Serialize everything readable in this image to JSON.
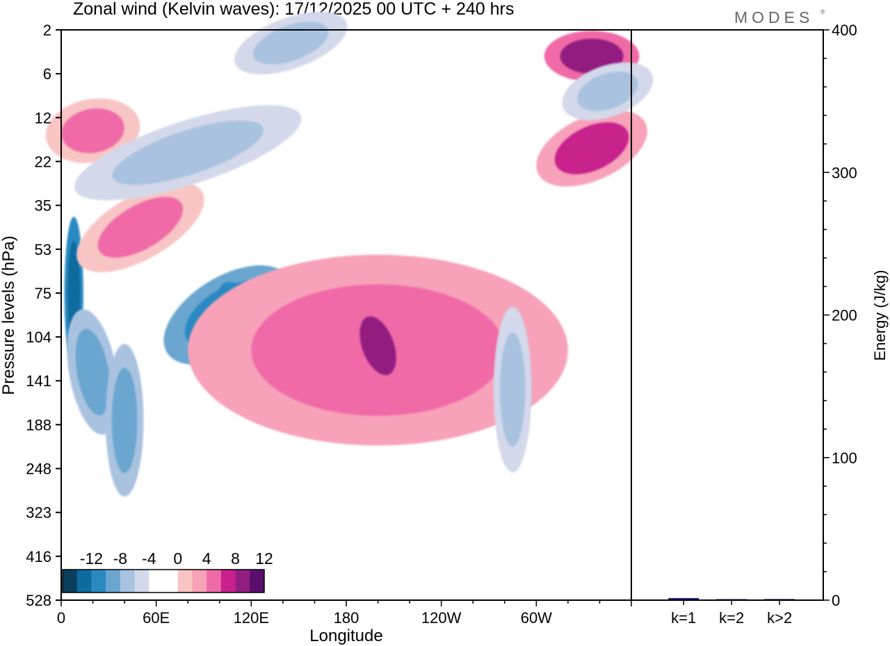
{
  "chart_data": {
    "type": "heatmap",
    "title": "Zonal wind (Kelvin waves):  17/12/2025  00 UTC  + 240 hrs",
    "brand": "MODES",
    "brand_mark": "®",
    "xlabel": "Longitude",
    "ylabel": "Pressure levels (hPa)",
    "x_ticks": [
      {
        "lon": 0,
        "label": "0"
      },
      {
        "lon": 60,
        "label": "60E"
      },
      {
        "lon": 120,
        "label": "120E"
      },
      {
        "lon": 180,
        "label": "180"
      },
      {
        "lon": 240,
        "label": "120W"
      },
      {
        "lon": 300,
        "label": "60W"
      }
    ],
    "xlim": [
      0,
      360
    ],
    "pressure_levels": [
      "2",
      "6",
      "12",
      "22",
      "35",
      "53",
      "75",
      "104",
      "141",
      "188",
      "248",
      "323",
      "416",
      "528"
    ],
    "colorbar": {
      "labels": [
        "-12",
        "-8",
        "-4",
        "0",
        "4",
        "8",
        "12"
      ],
      "colors": [
        "#0b3d5c",
        "#0d6c9d",
        "#2b89c2",
        "#6aa6d0",
        "#a9c2e0",
        "#d3d8ea",
        "#ffffff",
        "#ffffff",
        "#f8c5c4",
        "#f7a2b8",
        "#f06aa7",
        "#c8208c",
        "#921d80",
        "#5a0e6d"
      ]
    },
    "contours": [
      {
        "lon": 8,
        "level": 6,
        "rx": 4,
        "ry": 1.2,
        "rot": 0,
        "value": -12
      },
      {
        "lon": 20,
        "level": 7.8,
        "rx": 10,
        "ry": 1.0,
        "rot": -10,
        "value": -8
      },
      {
        "lon": 40,
        "level": 8.9,
        "rx": 8,
        "ry": 1.2,
        "rot": 0,
        "value": -8
      },
      {
        "lon": 105,
        "level": 6.5,
        "rx": 30,
        "ry": 0.6,
        "rot": -32,
        "value": -10
      },
      {
        "lon": 113,
        "level": 6.4,
        "rx": 7,
        "ry": 0.5,
        "rot": -30,
        "value": -12
      },
      {
        "lon": 200,
        "level": 7.3,
        "rx": 80,
        "ry": 1.5,
        "rot": 0,
        "value": 7
      },
      {
        "lon": 200,
        "level": 7.2,
        "rx": 10,
        "ry": 0.7,
        "rot": -20,
        "value": 10
      },
      {
        "lon": 285,
        "level": 8.2,
        "rx": 8,
        "ry": 1.3,
        "rot": 0,
        "value": -6
      },
      {
        "lon": 50,
        "level": 4.5,
        "rx": 30,
        "ry": 0.5,
        "rot": -30,
        "value": 6
      },
      {
        "lon": 20,
        "level": 2.3,
        "rx": 20,
        "ry": 0.5,
        "rot": -10,
        "value": 6
      },
      {
        "lon": 335,
        "level": 2.7,
        "rx": 25,
        "ry": 0.5,
        "rot": -25,
        "value": 8
      },
      {
        "lon": 335,
        "level": 0.6,
        "rx": 20,
        "ry": 0.4,
        "rot": 0,
        "value": 10
      },
      {
        "lon": 145,
        "level": 0.3,
        "rx": 25,
        "ry": 0.4,
        "rot": -20,
        "value": -6
      },
      {
        "lon": 80,
        "level": 2.8,
        "rx": 50,
        "ry": 0.5,
        "rot": -18,
        "value": -6
      },
      {
        "lon": 345,
        "level": 1.4,
        "rx": 20,
        "ry": 0.4,
        "rot": -20,
        "value": -6
      }
    ],
    "energy_axis": {
      "ylabel": "Energy (J/kg)",
      "ylim": [
        0,
        400
      ],
      "ticks": [
        0,
        100,
        200,
        300,
        400
      ]
    },
    "energy_bars": [
      {
        "label": "k=1",
        "value": 1.5,
        "color": "#1a237e"
      },
      {
        "label": "k=2",
        "value": 0.2,
        "color": "#1a237e"
      },
      {
        "label": "k>2",
        "value": 0.8,
        "color": "#1a237e"
      }
    ]
  }
}
